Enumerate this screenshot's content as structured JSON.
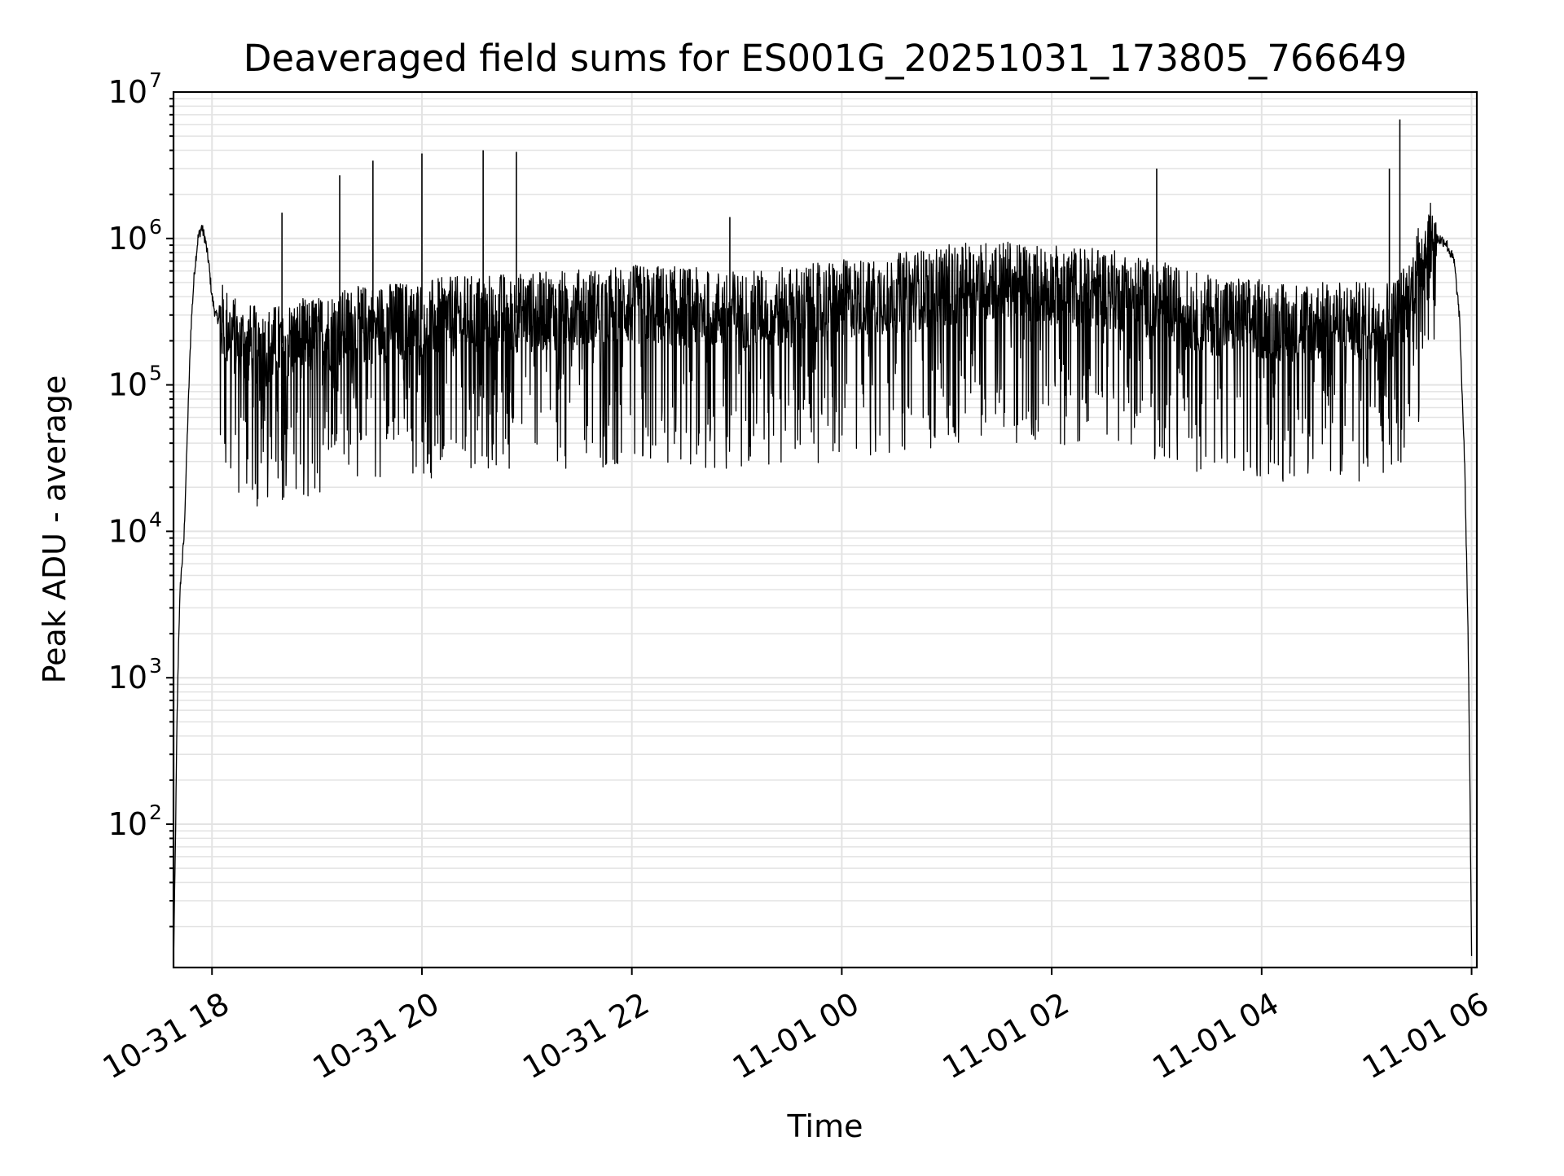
{
  "chart_data": {
    "type": "line",
    "title": "Deaveraged field sums for ES001G_20251031_173805_766649",
    "xlabel": "Time",
    "ylabel": "Peak ADU - average",
    "yscale": "log",
    "ylim": [
      10.5,
      10000000
    ],
    "xlim": [
      "2025-10-31 17:38",
      "2025-11-01 06:03"
    ],
    "grid": true,
    "line_color": "#000000",
    "x_tick_labels": [
      "10-31 18",
      "10-31 20",
      "10-31 22",
      "11-01 00",
      "11-01 02",
      "11-01 04",
      "11-01 06"
    ],
    "x_ticks": [
      "2025-10-31 18:00",
      "2025-10-31 20:00",
      "2025-10-31 22:00",
      "2025-11-01 00:00",
      "2025-11-01 02:00",
      "2025-11-01 04:00",
      "2025-11-01 06:00"
    ],
    "y_ticks": [
      {
        "value": 100,
        "base": "10",
        "exp": "2"
      },
      {
        "value": 1000,
        "base": "10",
        "exp": "3"
      },
      {
        "value": 10000,
        "base": "10",
        "exp": "4"
      },
      {
        "value": 100000,
        "base": "10",
        "exp": "5"
      },
      {
        "value": 1000000,
        "base": "10",
        "exp": "6"
      },
      {
        "value": 10000000,
        "base": "10",
        "exp": "7"
      }
    ],
    "series": [
      {
        "x": [
          "2025-10-31 17:38",
          "2025-10-31 17:39",
          "2025-10-31 17:40",
          "2025-10-31 17:41",
          "2025-10-31 17:42",
          "2025-10-31 17:44",
          "2025-10-31 17:46",
          "2025-10-31 17:48",
          "2025-10-31 17:50",
          "2025-10-31 17:52",
          "2025-10-31 17:54",
          "2025-10-31 17:56",
          "2025-10-31 17:58",
          "2025-10-31 18:00",
          "2025-10-31 18:02",
          "2025-10-31 18:04",
          "2025-10-31 18:08",
          "2025-10-31 18:15",
          "2025-10-31 18:30",
          "2025-10-31 18:45",
          "2025-10-31 19:00",
          "2025-10-31 19:15",
          "2025-10-31 19:30",
          "2025-10-31 19:45",
          "2025-10-31 20:00",
          "2025-10-31 20:15",
          "2025-10-31 20:30",
          "2025-10-31 20:45",
          "2025-10-31 21:00",
          "2025-10-31 21:15",
          "2025-10-31 21:30",
          "2025-10-31 21:45",
          "2025-10-31 22:00",
          "2025-10-31 22:15",
          "2025-10-31 22:30",
          "2025-10-31 22:45",
          "2025-10-31 23:00",
          "2025-10-31 23:15",
          "2025-10-31 23:30",
          "2025-10-31 23:45",
          "2025-11-01 00:00",
          "2025-11-01 00:15",
          "2025-11-01 00:30",
          "2025-11-01 00:45",
          "2025-11-01 01:00",
          "2025-11-01 01:15",
          "2025-11-01 01:30",
          "2025-11-01 01:45",
          "2025-11-01 02:00",
          "2025-11-01 02:15",
          "2025-11-01 02:30",
          "2025-11-01 02:45",
          "2025-11-01 03:00",
          "2025-11-01 03:15",
          "2025-11-01 03:30",
          "2025-11-01 03:45",
          "2025-11-01 04:00",
          "2025-11-01 04:15",
          "2025-11-01 04:30",
          "2025-11-01 04:45",
          "2025-11-01 05:00",
          "2025-11-01 05:15",
          "2025-11-01 05:25",
          "2025-11-01 05:30",
          "2025-11-01 05:35",
          "2025-11-01 05:40",
          "2025-11-01 05:45",
          "2025-11-01 05:50",
          "2025-11-01 05:53",
          "2025-11-01 05:56",
          "2025-11-01 05:58",
          "2025-11-01 05:59",
          "2025-11-01 06:00"
        ],
        "y": [
          11,
          60,
          500,
          2000,
          4500,
          9000,
          50000,
          250000,
          600000,
          1000000,
          1200000,
          1000000,
          700000,
          400000,
          300000,
          280000,
          250000,
          200000,
          180000,
          200000,
          220000,
          240000,
          260000,
          270000,
          280000,
          290000,
          300000,
          310000,
          310000,
          320000,
          330000,
          340000,
          350000,
          350000,
          340000,
          330000,
          320000,
          330000,
          340000,
          360000,
          380000,
          400000,
          420000,
          450000,
          480000,
          500000,
          520000,
          500000,
          480000,
          470000,
          460000,
          420000,
          380000,
          330000,
          300000,
          290000,
          280000,
          270000,
          270000,
          270000,
          270000,
          280000,
          400000,
          700000,
          900000,
          1000000,
          950000,
          700000,
          300000,
          30000,
          2000,
          200,
          12
        ]
      }
    ],
    "spikes": [
      {
        "x": "2025-10-31 18:40",
        "y": 1500000
      },
      {
        "x": "2025-10-31 19:13",
        "y": 2700000
      },
      {
        "x": "2025-10-31 19:32",
        "y": 3400000
      },
      {
        "x": "2025-10-31 20:00",
        "y": 3800000
      },
      {
        "x": "2025-10-31 20:35",
        "y": 4000000
      },
      {
        "x": "2025-10-31 20:54",
        "y": 3900000
      },
      {
        "x": "2025-10-31 22:56",
        "y": 1400000
      },
      {
        "x": "2025-11-01 03:00",
        "y": 3000000
      },
      {
        "x": "2025-11-01 05:13",
        "y": 3000000
      },
      {
        "x": "2025-11-01 05:19",
        "y": 6500000
      }
    ]
  }
}
